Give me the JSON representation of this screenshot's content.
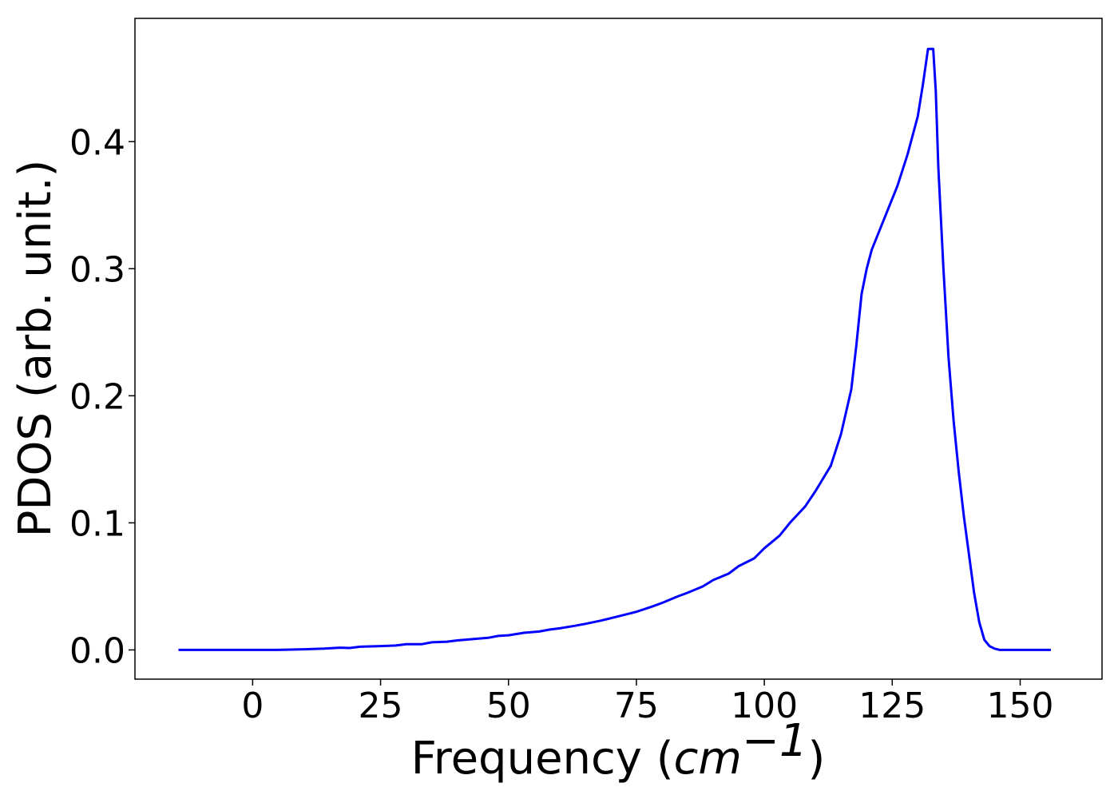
{
  "chart_data": {
    "type": "line",
    "xlabel": {
      "prefix": "Frequency (",
      "unit_base": "cm",
      "unit_exponent": "−1",
      "suffix": ")"
    },
    "ylabel": "PDOS (arb. unit.)",
    "xlim": [
      -23,
      166
    ],
    "ylim": [
      -0.023,
      0.497
    ],
    "xticks": [
      0,
      25,
      50,
      75,
      100,
      125,
      150
    ],
    "xtick_labels": [
      "0",
      "25",
      "50",
      "75",
      "100",
      "125",
      "150"
    ],
    "yticks": [
      0.0,
      0.1,
      0.2,
      0.3,
      0.4
    ],
    "ytick_labels": [
      "0.0",
      "0.1",
      "0.2",
      "0.3",
      "0.4"
    ],
    "grid": false,
    "series": [
      {
        "color": "#0000ff",
        "x": [
          -14.5,
          -10,
          -5,
          0,
          5,
          10,
          14,
          17,
          19,
          21,
          25,
          28,
          30,
          33,
          35,
          38,
          40,
          43,
          46,
          48,
          50,
          53,
          56,
          58,
          60,
          63,
          65,
          68,
          70,
          73,
          75,
          78,
          80,
          83,
          85,
          88,
          90,
          93,
          95,
          98,
          100,
          103,
          105,
          108,
          110,
          113,
          115,
          117,
          118,
          119,
          120,
          121,
          122,
          124,
          126,
          128,
          130,
          131,
          132,
          133,
          133.5,
          134,
          135,
          136,
          137,
          138,
          139,
          140,
          141,
          142,
          143,
          144,
          145,
          146,
          148,
          150,
          153,
          156
        ],
        "y": [
          0.0,
          0.0,
          0.0,
          0.0,
          0.0,
          0.0005,
          0.001,
          0.0018,
          0.0015,
          0.0025,
          0.003,
          0.0035,
          0.0045,
          0.0045,
          0.006,
          0.0065,
          0.0075,
          0.0085,
          0.0095,
          0.011,
          0.0115,
          0.0135,
          0.0145,
          0.016,
          0.017,
          0.019,
          0.0205,
          0.023,
          0.025,
          0.028,
          0.03,
          0.034,
          0.037,
          0.042,
          0.045,
          0.05,
          0.055,
          0.06,
          0.066,
          0.072,
          0.08,
          0.09,
          0.1,
          0.113,
          0.125,
          0.145,
          0.17,
          0.205,
          0.24,
          0.28,
          0.3,
          0.315,
          0.325,
          0.345,
          0.365,
          0.39,
          0.42,
          0.445,
          0.473,
          0.473,
          0.44,
          0.38,
          0.3,
          0.23,
          0.18,
          0.14,
          0.105,
          0.075,
          0.045,
          0.022,
          0.008,
          0.003,
          0.001,
          0.0,
          0.0,
          0.0,
          0.0,
          0.0
        ]
      }
    ]
  }
}
